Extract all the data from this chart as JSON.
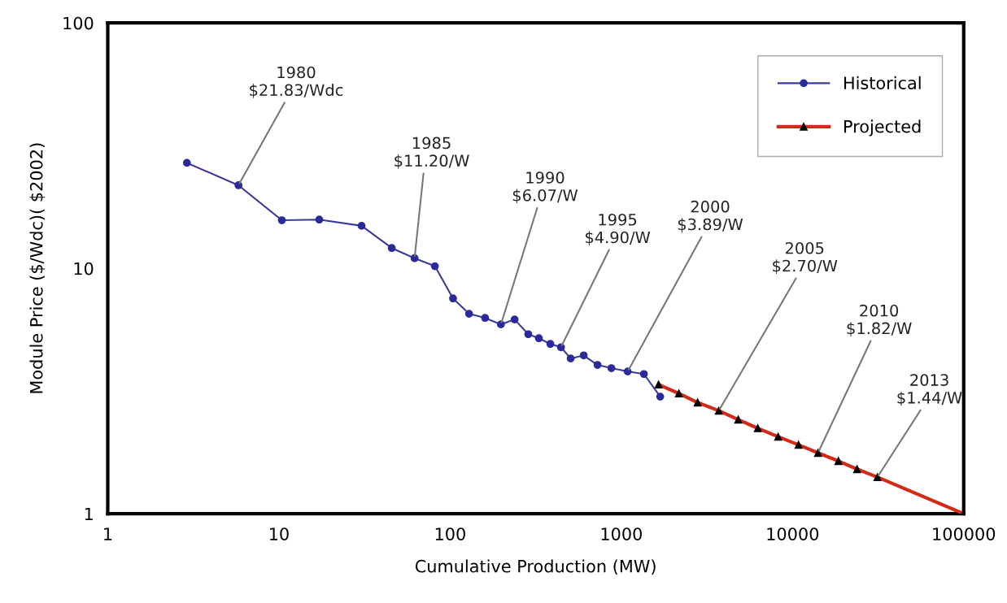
{
  "chart_data": {
    "type": "line",
    "xlabel": "Cumulative Production (MW)",
    "ylabel": "Module Price ($/Wdc)( $2002)",
    "log": "xy",
    "xlim": [
      1,
      100000
    ],
    "ylim": [
      1,
      100
    ],
    "xticks": [
      1,
      10,
      100,
      1000,
      10000,
      100000
    ],
    "yticks": [
      1,
      10,
      100
    ],
    "grid": false,
    "legend": "top right",
    "series": [
      {
        "name": "Historical",
        "color": "#3a3a9e",
        "marker": "circle",
        "x": [
          2.9,
          5.8,
          10.4,
          17.2,
          30.4,
          45.6,
          62,
          81.5,
          104,
          129,
          160,
          198,
          238,
          286,
          330,
          385,
          444,
          506,
          603,
          726,
          875,
          1089,
          1355,
          1687
        ],
        "values": [
          26.9,
          21.8,
          15.7,
          15.8,
          14.9,
          12.1,
          11.0,
          10.2,
          7.54,
          6.53,
          6.28,
          5.91,
          6.19,
          5.39,
          5.19,
          4.92,
          4.77,
          4.29,
          4.42,
          4.04,
          3.92,
          3.8,
          3.71,
          3.0
        ]
      },
      {
        "name": "Projected",
        "color": "#d42a1a",
        "marker": "triangle",
        "x": [
          1650,
          2170,
          2790,
          3710,
          4820,
          6270,
          8240,
          10840,
          14090,
          18540,
          23830,
          31330,
          100000
        ],
        "values": [
          3.36,
          3.09,
          2.84,
          2.63,
          2.42,
          2.23,
          2.06,
          1.91,
          1.77,
          1.64,
          1.52,
          1.41,
          1.0
        ]
      }
    ],
    "annotations": [
      {
        "text": "1980\n$21.83/Wdc",
        "x": 5.8,
        "y": 21.8
      },
      {
        "text": "1985\n$11.20/W",
        "x": 62,
        "y": 11.0
      },
      {
        "text": "1990\n$6.07/W",
        "x": 198,
        "y": 5.91
      },
      {
        "text": "1995\n$4.90/W",
        "x": 444,
        "y": 4.77
      },
      {
        "text": "2000\n$3.89/W",
        "x": 1089,
        "y": 3.8
      },
      {
        "text": "2005\n$2.70/W",
        "x": 3710,
        "y": 2.63
      },
      {
        "text": "2010\n$1.82/W",
        "x": 14090,
        "y": 1.77
      },
      {
        "text": "2013\n$1.44/W",
        "x": 31330,
        "y": 1.41
      }
    ]
  }
}
